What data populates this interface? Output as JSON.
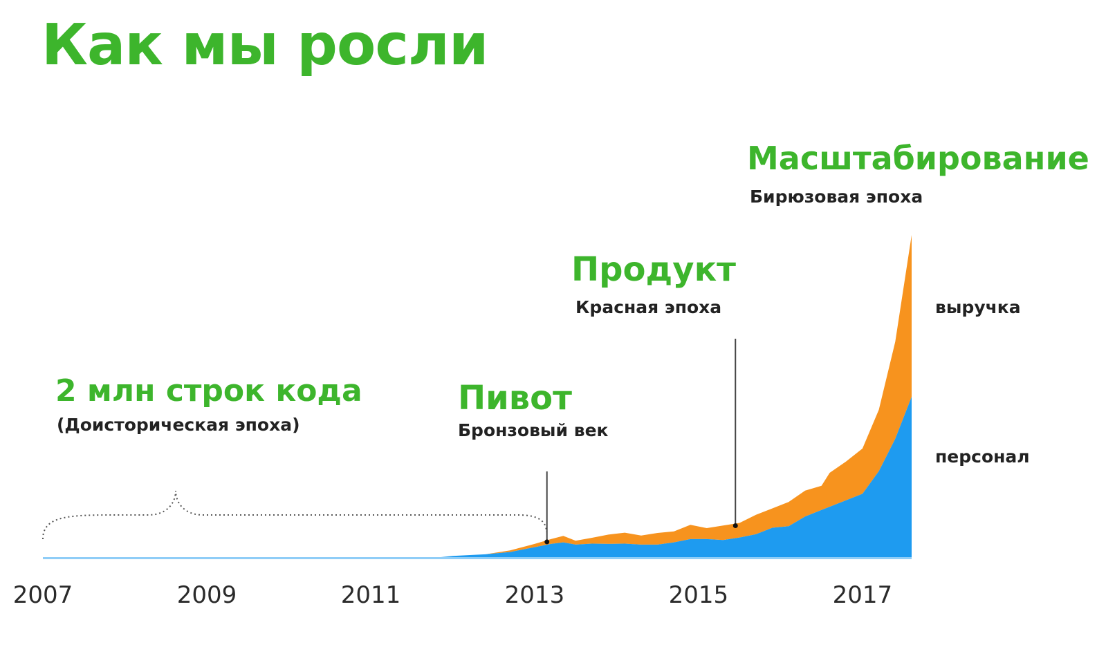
{
  "title": "Как мы росли",
  "colors": {
    "accent": "#3db52c",
    "revenue": "#f7931e",
    "staff": "#1e9bf0",
    "text": "#222222"
  },
  "phases": [
    {
      "name": "2 млн строк кода",
      "era": "(Доисторическая эпоха)"
    },
    {
      "name": "Пивот",
      "era": "Бронзовый век"
    },
    {
      "name": "Продукт",
      "era": "Красная эпоха"
    },
    {
      "name": "Масштабирование",
      "era": "Бирюзовая эпоха"
    }
  ],
  "series_labels": {
    "revenue": "выручка",
    "staff": "персонал"
  },
  "chart_data": {
    "type": "area",
    "stacked": true,
    "xlabel": "",
    "ylabel": "",
    "xlim": [
      2007,
      2017.6
    ],
    "ylim": [
      0,
      100
    ],
    "x_ticks": [
      "2007",
      "2009",
      "2011",
      "2013",
      "2015",
      "2017"
    ],
    "grid": false,
    "x": [
      2007,
      2011.8,
      2012,
      2012.4,
      2012.7,
      2013,
      2013.2,
      2013.35,
      2013.5,
      2013.7,
      2013.9,
      2014.1,
      2014.3,
      2014.5,
      2014.7,
      2014.9,
      2015.1,
      2015.3,
      2015.5,
      2015.7,
      2015.9,
      2016.1,
      2016.3,
      2016.5,
      2016.6,
      2016.8,
      2017.0,
      2017.2,
      2017.4,
      2017.6
    ],
    "series": [
      {
        "name": "персонал",
        "values": [
          0.3,
          0.3,
          0.8,
          1.3,
          2,
          3.5,
          4.5,
          5,
          4.3,
          4.6,
          4.5,
          4.6,
          4.3,
          4.3,
          5,
          6,
          6,
          5.7,
          6.5,
          7.5,
          9.5,
          10,
          13,
          15,
          16,
          18,
          20,
          27,
          37,
          50
        ]
      },
      {
        "name": "выручка",
        "values": [
          0,
          0,
          0,
          0,
          0.5,
          1,
          1.5,
          2,
          1.2,
          1.8,
          2.9,
          3.4,
          2.8,
          3.6,
          3.4,
          4.4,
          3.4,
          4.5,
          4.5,
          6,
          6,
          7.5,
          8,
          7.5,
          10.5,
          12,
          14,
          19,
          30,
          50
        ]
      }
    ],
    "annotations": [
      {
        "x": 2013.15,
        "label": "Пивот"
      },
      {
        "x": 2015.45,
        "label": "Продукт"
      }
    ]
  }
}
